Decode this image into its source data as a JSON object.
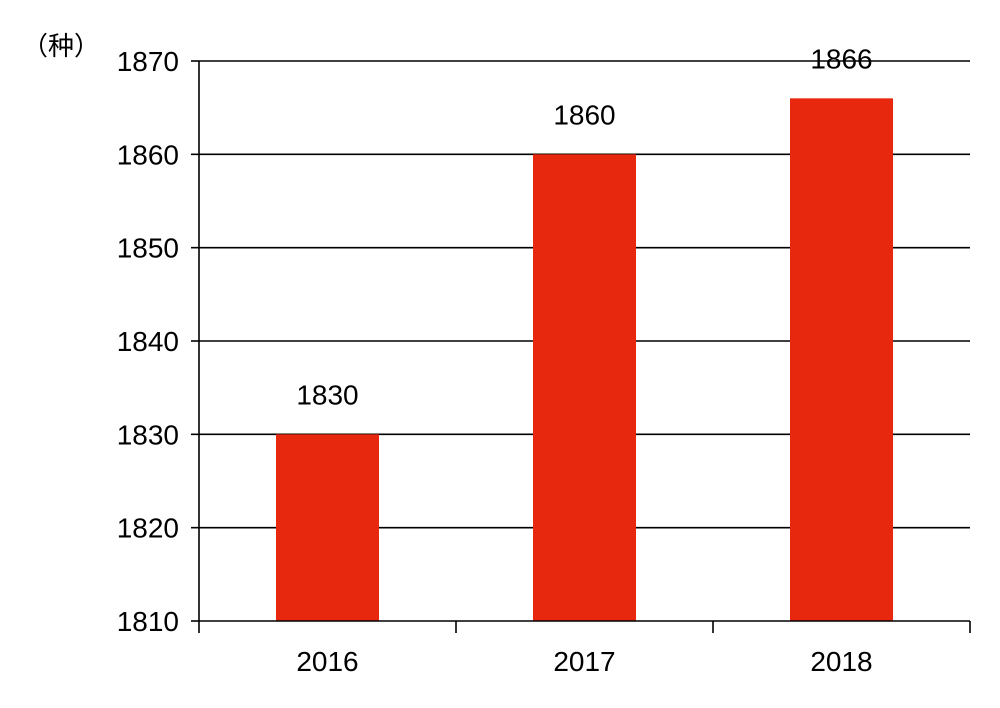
{
  "chart_data": {
    "type": "bar",
    "unit_label": "（种）",
    "categories": [
      "2016",
      "2017",
      "2018"
    ],
    "values": [
      1830,
      1860,
      1866
    ],
    "data_labels": [
      "1830",
      "1860",
      "1866"
    ],
    "y_ticks": [
      1810,
      1820,
      1830,
      1840,
      1850,
      1860,
      1870
    ],
    "ylim": [
      1810,
      1870
    ],
    "grid": true,
    "bar_color": "#e8270f",
    "xlabel": "",
    "ylabel": ""
  }
}
